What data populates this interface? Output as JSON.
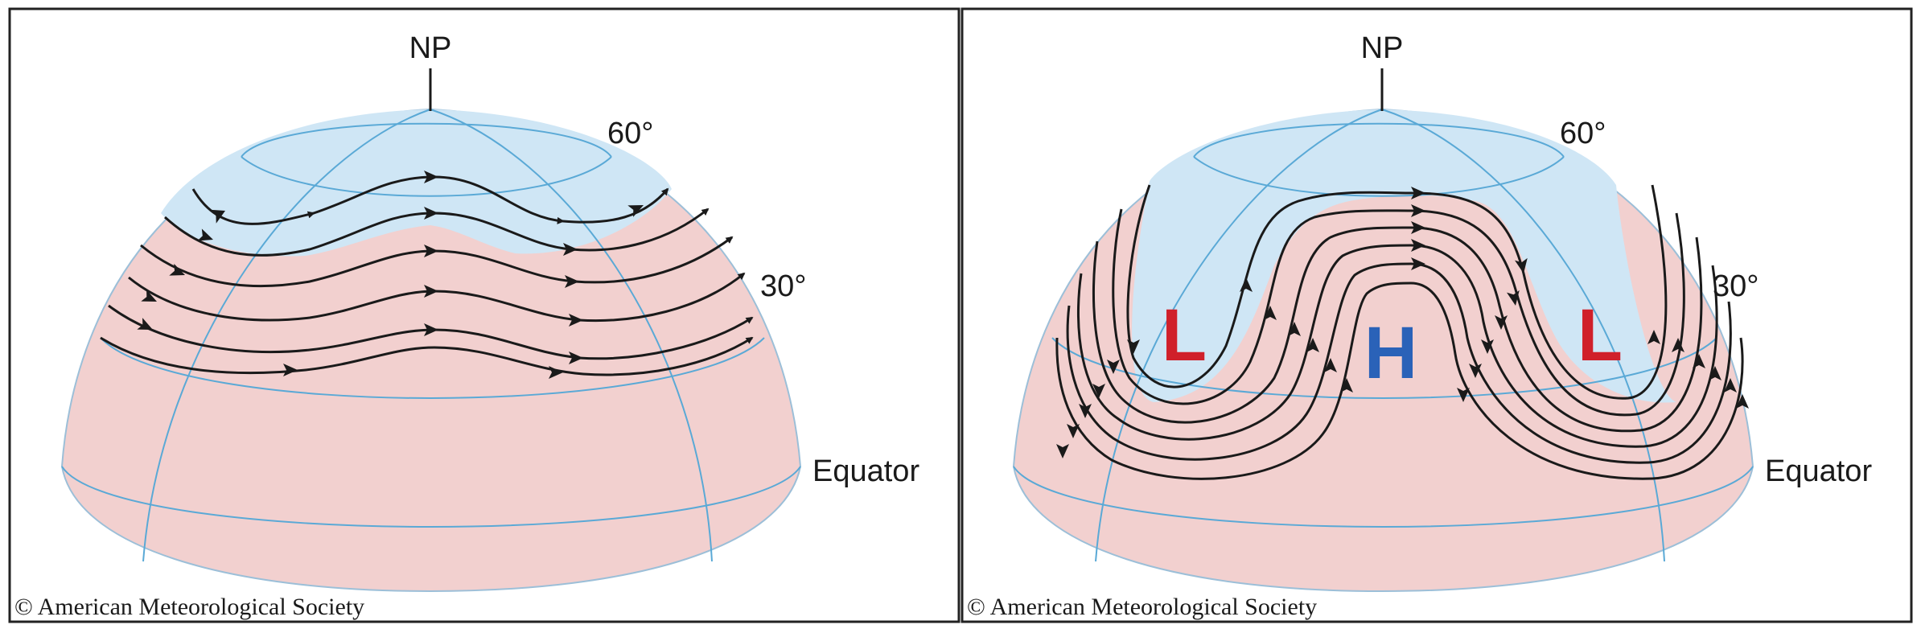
{
  "panels": [
    {
      "pole_label": "NP",
      "lat60_label": "60°",
      "lat30_label": "30°",
      "equator_label": "Equator",
      "copyright": "© American Meteorological Society"
    },
    {
      "pole_label": "NP",
      "lat60_label": "60°",
      "lat30_label": "30°",
      "equator_label": "Equator",
      "copyright": "© American Meteorological Society",
      "low_left": "L",
      "high_center": "H",
      "low_right": "L"
    }
  ],
  "colors": {
    "polar_air": "#cfe6f5",
    "warm_air": "#f2d0cf",
    "grid_line": "#5aa9d6",
    "flow_line": "#1a1a1a",
    "low": "#d0202a",
    "high": "#2a62b8"
  }
}
